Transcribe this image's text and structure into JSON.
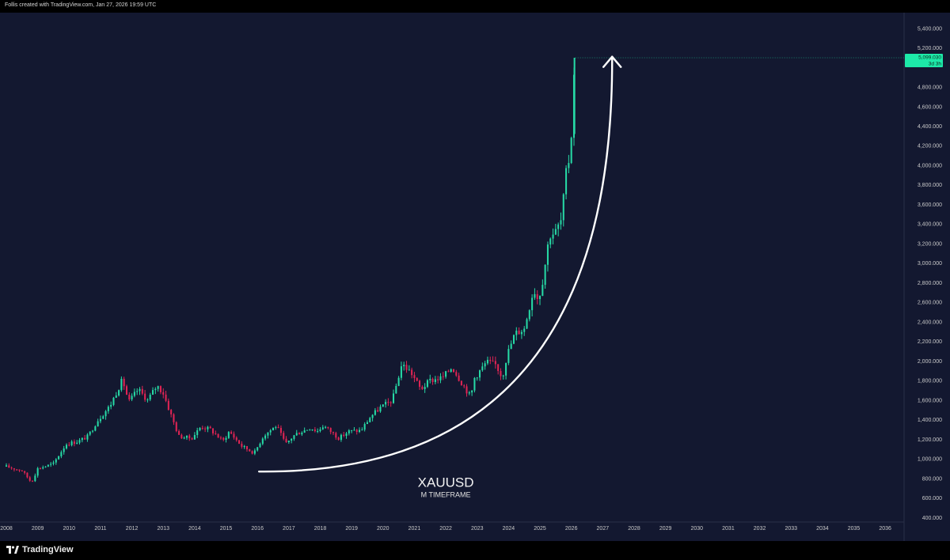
{
  "header": {
    "caption": "Follis created with TradingView.com, Jan 27, 2026 19:59 UTC"
  },
  "branding": {
    "logo_text": "TradingView"
  },
  "colors": {
    "background": "#131830",
    "up": "#26d9a5",
    "down": "#e02454",
    "price_badge": "#1de9a8",
    "arrow": "#ffffff"
  },
  "chart_data": {
    "type": "candlestick",
    "symbol": "XAUUSD",
    "timeframe_label": "M TIMEFRAME",
    "xlim": [
      2008,
      2036.5
    ],
    "ylim": [
      370,
      5560
    ],
    "x_ticks": [
      "2008",
      "2009",
      "2010",
      "2011",
      "2012",
      "2013",
      "2014",
      "2015",
      "2016",
      "2017",
      "2018",
      "2019",
      "2020",
      "2021",
      "2022",
      "2023",
      "2024",
      "2025",
      "2026",
      "2027",
      "2028",
      "2029",
      "2030",
      "2031",
      "2032",
      "2033",
      "2034",
      "2035",
      "2036"
    ],
    "y_ticks": [
      "5,400.000",
      "5,200.000",
      "4,800.000",
      "4,600.000",
      "4,400.000",
      "4,200.000",
      "4,000.000",
      "3,800.000",
      "3,600.000",
      "3,400.000",
      "3,200.000",
      "3,000.000",
      "2,800.000",
      "2,600.000",
      "2,400.000",
      "2,200.000",
      "2,000.000",
      "1,800.000",
      "1,600.000",
      "1,400.000",
      "1,200.000",
      "1,000.000",
      "800.000",
      "600.000",
      "400.000"
    ],
    "last_price": {
      "value": 5099.03,
      "label": "5,099.030",
      "countdown": "3d 3h"
    },
    "series": [
      {
        "name": "monthly_close",
        "points": [
          [
            2008.0,
            920
          ],
          [
            2008.5,
            880
          ],
          [
            2008.8,
            760
          ],
          [
            2009.0,
            900
          ],
          [
            2009.5,
            950
          ],
          [
            2009.9,
            1150
          ],
          [
            2010.3,
            1180
          ],
          [
            2010.6,
            1230
          ],
          [
            2010.9,
            1390
          ],
          [
            2011.3,
            1540
          ],
          [
            2011.7,
            1810
          ],
          [
            2011.9,
            1580
          ],
          [
            2012.2,
            1710
          ],
          [
            2012.5,
            1600
          ],
          [
            2012.8,
            1750
          ],
          [
            2013.0,
            1670
          ],
          [
            2013.3,
            1400
          ],
          [
            2013.5,
            1230
          ],
          [
            2013.9,
            1210
          ],
          [
            2014.2,
            1330
          ],
          [
            2014.5,
            1300
          ],
          [
            2014.9,
            1180
          ],
          [
            2015.1,
            1280
          ],
          [
            2015.5,
            1130
          ],
          [
            2015.9,
            1060
          ],
          [
            2016.2,
            1240
          ],
          [
            2016.6,
            1340
          ],
          [
            2016.9,
            1150
          ],
          [
            2017.2,
            1250
          ],
          [
            2017.7,
            1320
          ],
          [
            2017.9,
            1280
          ],
          [
            2018.1,
            1340
          ],
          [
            2018.6,
            1210
          ],
          [
            2018.9,
            1280
          ],
          [
            2019.3,
            1290
          ],
          [
            2019.6,
            1430
          ],
          [
            2019.9,
            1520
          ],
          [
            2020.3,
            1600
          ],
          [
            2020.6,
            1970
          ],
          [
            2020.9,
            1880
          ],
          [
            2021.2,
            1710
          ],
          [
            2021.5,
            1800
          ],
          [
            2021.9,
            1830
          ],
          [
            2022.2,
            1940
          ],
          [
            2022.5,
            1780
          ],
          [
            2022.8,
            1630
          ],
          [
            2022.9,
            1820
          ],
          [
            2023.3,
            1990
          ],
          [
            2023.6,
            1960
          ],
          [
            2023.8,
            1830
          ],
          [
            2023.95,
            2060
          ],
          [
            2024.2,
            2280
          ],
          [
            2024.5,
            2330
          ],
          [
            2024.8,
            2740
          ],
          [
            2024.95,
            2620
          ],
          [
            2025.1,
            2850
          ],
          [
            2025.3,
            3290
          ],
          [
            2025.5,
            3320
          ],
          [
            2025.7,
            3450
          ],
          [
            2025.8,
            3860
          ],
          [
            2025.9,
            4000
          ],
          [
            2026.0,
            4320
          ],
          [
            2026.1,
            5099
          ]
        ]
      }
    ],
    "annotations": [
      {
        "type": "curved_arrow",
        "from": [
          2016.05,
          870
        ],
        "to": [
          2027.3,
          5110
        ],
        "color": "#ffffff"
      },
      {
        "type": "text",
        "text": "XAUUSD",
        "x": 2022.0,
        "y": 715
      },
      {
        "type": "text",
        "text": "M TIMEFRAME",
        "x": 2022.0,
        "y": 610
      }
    ]
  }
}
